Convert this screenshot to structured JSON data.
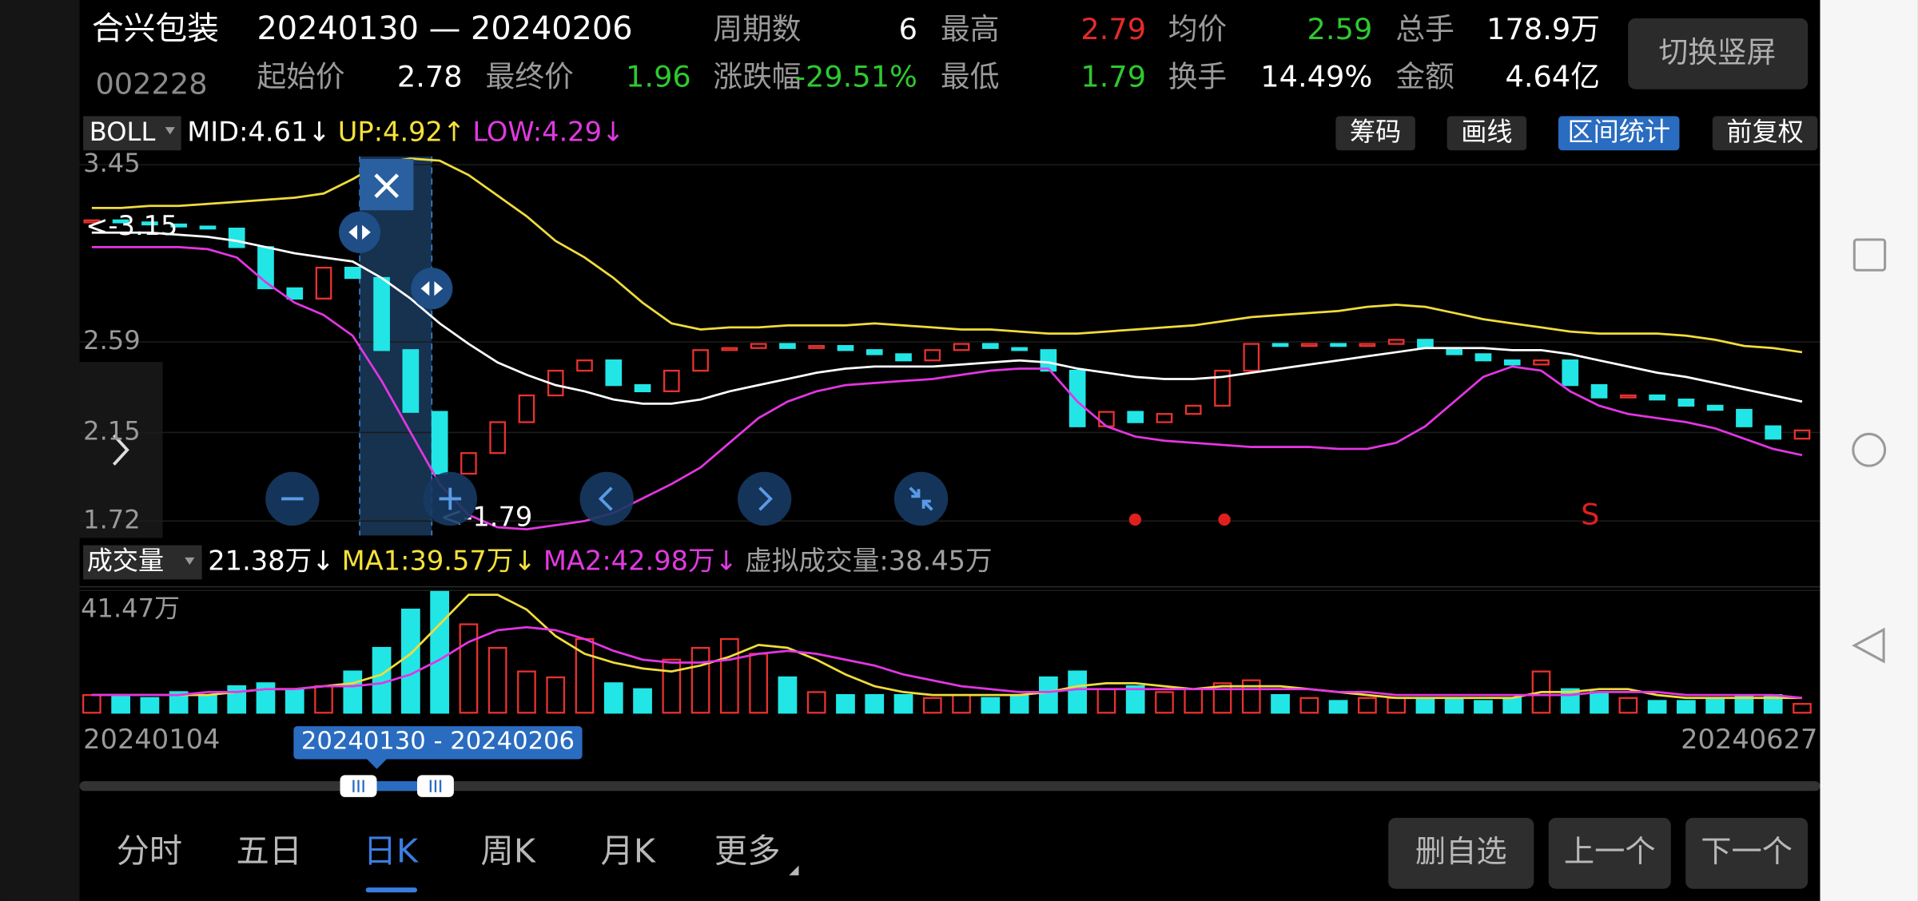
{
  "header": {
    "name": "合兴包装",
    "code": "002228",
    "range": "20240130 — 20240206",
    "button": "切换竖屏",
    "rows": [
      [
        {
          "label": "周期数",
          "value": "6"
        },
        {
          "label": "最高",
          "value": "2.79",
          "color": "#e52a2a"
        },
        {
          "label": "均价",
          "value": "2.59",
          "color": "#2ec92e"
        },
        {
          "label": "总手",
          "value": "178.9万"
        }
      ],
      [
        {
          "label": "起始价",
          "value": "2.78"
        },
        {
          "label": "最终价",
          "value": "1.96",
          "color": "#2ec92e"
        },
        {
          "label": "涨跌幅",
          "value": "-29.51%",
          "color": "#2ec92e"
        },
        {
          "label": "最低",
          "value": "1.79",
          "color": "#2ec92e"
        },
        {
          "label": "换手",
          "value": "14.49%"
        },
        {
          "label": "金额",
          "value": "4.64亿"
        }
      ]
    ]
  },
  "indicator": {
    "name": "BOLL",
    "items": [
      {
        "text": "MID:4.61↓",
        "color": "#ffffff"
      },
      {
        "text": "UP:4.92↑",
        "color": "#f5e13a"
      },
      {
        "text": "LOW:4.29↓",
        "color": "#e03ae0"
      }
    ]
  },
  "tools": [
    {
      "text": "筹码"
    },
    {
      "text": "画线"
    },
    {
      "text": "区间统计",
      "active": true
    },
    {
      "text": "前复权"
    }
  ],
  "chart": {
    "type": "candlestick",
    "ylim": [
      1.65,
      3.49
    ],
    "yticks": [
      3.45,
      2.59,
      2.15,
      1.72
    ],
    "up_color": "#e8322f",
    "down_color": "#22e6e6",
    "open": [
      3.17,
      3.18,
      3.17,
      3.16,
      3.15,
      3.14,
      3.05,
      2.85,
      2.8,
      2.95,
      2.9,
      2.55,
      2.25,
      1.95,
      2.05,
      2.2,
      2.33,
      2.45,
      2.5,
      2.38,
      2.35,
      2.45,
      2.55,
      2.56,
      2.58,
      2.56,
      2.57,
      2.55,
      2.53,
      2.5,
      2.55,
      2.58,
      2.56,
      2.55,
      2.45,
      2.18,
      2.25,
      2.2,
      2.24,
      2.28,
      2.45,
      2.58,
      2.57,
      2.58,
      2.57,
      2.58,
      2.6,
      2.56,
      2.53,
      2.5,
      2.48,
      2.5,
      2.38,
      2.32,
      2.33,
      2.31,
      2.28,
      2.26,
      2.18,
      2.12
    ],
    "close": [
      3.18,
      3.17,
      3.16,
      3.15,
      3.14,
      3.05,
      2.85,
      2.8,
      2.95,
      2.9,
      2.55,
      2.25,
      1.95,
      2.05,
      2.2,
      2.33,
      2.45,
      2.5,
      2.38,
      2.35,
      2.45,
      2.55,
      2.56,
      2.58,
      2.56,
      2.57,
      2.55,
      2.53,
      2.5,
      2.55,
      2.58,
      2.56,
      2.55,
      2.45,
      2.18,
      2.25,
      2.2,
      2.24,
      2.28,
      2.45,
      2.58,
      2.57,
      2.58,
      2.57,
      2.58,
      2.6,
      2.56,
      2.53,
      2.5,
      2.48,
      2.5,
      2.38,
      2.32,
      2.33,
      2.31,
      2.28,
      2.26,
      2.18,
      2.12,
      2.16
    ],
    "boll": [
      {
        "color": "#f0dc3c",
        "values": [
          3.24,
          3.24,
          3.25,
          3.25,
          3.26,
          3.27,
          3.28,
          3.29,
          3.31,
          3.38,
          3.46,
          3.48,
          3.47,
          3.4,
          3.3,
          3.2,
          3.08,
          3.0,
          2.9,
          2.78,
          2.68,
          2.65,
          2.66,
          2.66,
          2.67,
          2.67,
          2.67,
          2.68,
          2.67,
          2.66,
          2.65,
          2.65,
          2.64,
          2.63,
          2.63,
          2.64,
          2.65,
          2.66,
          2.67,
          2.69,
          2.71,
          2.72,
          2.73,
          2.74,
          2.76,
          2.77,
          2.76,
          2.73,
          2.7,
          2.68,
          2.66,
          2.64,
          2.63,
          2.63,
          2.63,
          2.62,
          2.6,
          2.57,
          2.56,
          2.54
        ]
      },
      {
        "color": "#ffffff",
        "values": [
          3.12,
          3.12,
          3.12,
          3.11,
          3.1,
          3.08,
          3.05,
          3.02,
          3.0,
          2.98,
          2.9,
          2.8,
          2.68,
          2.58,
          2.49,
          2.43,
          2.38,
          2.35,
          2.31,
          2.29,
          2.29,
          2.31,
          2.35,
          2.38,
          2.41,
          2.44,
          2.46,
          2.47,
          2.47,
          2.47,
          2.48,
          2.49,
          2.5,
          2.49,
          2.46,
          2.44,
          2.42,
          2.41,
          2.41,
          2.42,
          2.44,
          2.46,
          2.48,
          2.5,
          2.52,
          2.54,
          2.56,
          2.56,
          2.56,
          2.55,
          2.55,
          2.53,
          2.5,
          2.47,
          2.44,
          2.42,
          2.39,
          2.36,
          2.33,
          2.3
        ]
      },
      {
        "color": "#e236e2",
        "values": [
          3.05,
          3.05,
          3.05,
          3.05,
          3.04,
          3.0,
          2.88,
          2.78,
          2.72,
          2.62,
          2.4,
          2.15,
          1.9,
          1.75,
          1.69,
          1.68,
          1.7,
          1.72,
          1.76,
          1.83,
          1.9,
          1.98,
          2.1,
          2.22,
          2.3,
          2.35,
          2.38,
          2.39,
          2.4,
          2.41,
          2.43,
          2.45,
          2.46,
          2.46,
          2.3,
          2.18,
          2.13,
          2.11,
          2.1,
          2.09,
          2.08,
          2.08,
          2.08,
          2.07,
          2.07,
          2.1,
          2.18,
          2.3,
          2.42,
          2.47,
          2.45,
          2.35,
          2.28,
          2.24,
          2.22,
          2.2,
          2.17,
          2.12,
          2.07,
          2.04
        ]
      }
    ],
    "annotations": [
      "<-3.15",
      "<-1.79"
    ],
    "signal": "S"
  },
  "volume": {
    "type": "bar",
    "name": "成交量",
    "items": [
      {
        "text": "21.38万↓",
        "color": "#ffffff"
      },
      {
        "text": "MA1:39.57万↓",
        "color": "#f5e13a"
      },
      {
        "text": "MA2:42.98万↓",
        "color": "#e03ae0"
      },
      {
        "text": "虚拟成交量:38.45万",
        "color": "#a0a0a0"
      }
    ],
    "ylim": [
      0,
      41.47
    ],
    "yticks": [
      {
        "value": 41.47,
        "label": "41.47万"
      }
    ],
    "values": [
      6,
      6,
      5,
      7,
      6,
      9,
      10,
      8,
      9,
      14,
      22,
      35,
      41,
      30,
      22,
      14,
      12,
      25,
      10,
      8,
      18,
      22,
      25,
      20,
      12,
      7,
      6,
      6,
      6,
      5,
      6,
      5,
      6,
      12,
      14,
      8,
      9,
      7,
      8,
      10,
      11,
      6,
      5,
      4,
      5,
      5,
      5,
      5,
      4,
      5,
      14,
      8,
      7,
      5,
      4,
      4,
      5,
      6,
      6,
      3
    ],
    "ma": [
      {
        "color": "#f0dc3c",
        "values": [
          6,
          6,
          6,
          6,
          6,
          7,
          8,
          8,
          9,
          10,
          13,
          20,
          30,
          40,
          40,
          35,
          26,
          20,
          17,
          15,
          14,
          16,
          19,
          23,
          22,
          18,
          13,
          9,
          7,
          6,
          6,
          6,
          6,
          7,
          9,
          10,
          10,
          9,
          8,
          9,
          9,
          9,
          8,
          7,
          6,
          5,
          5,
          5,
          5,
          5,
          7,
          7,
          8,
          8,
          6,
          5,
          5,
          5,
          5,
          5
        ]
      },
      {
        "color": "#e236e2",
        "values": [
          6,
          6,
          6,
          6,
          7,
          7,
          8,
          8,
          9,
          9,
          10,
          13,
          18,
          24,
          28,
          29,
          28,
          25,
          21,
          18,
          17,
          17,
          18,
          20,
          21,
          20,
          18,
          16,
          13,
          11,
          9,
          8,
          7,
          7,
          8,
          8,
          8,
          8,
          8,
          8,
          8,
          8,
          8,
          7,
          7,
          6,
          6,
          6,
          6,
          6,
          6,
          6,
          7,
          7,
          7,
          6,
          6,
          6,
          6,
          5
        ]
      }
    ]
  },
  "dates": {
    "start": "20240104",
    "end": "20240627",
    "selection": "20240130 - 20240206"
  },
  "tabs": [
    {
      "text": "分时"
    },
    {
      "text": "五日"
    },
    {
      "text": "日K",
      "active": true
    },
    {
      "text": "周K"
    },
    {
      "text": "月K"
    },
    {
      "text": "更多"
    }
  ],
  "buttons": [
    "删自选",
    "上一个",
    "下一个"
  ]
}
